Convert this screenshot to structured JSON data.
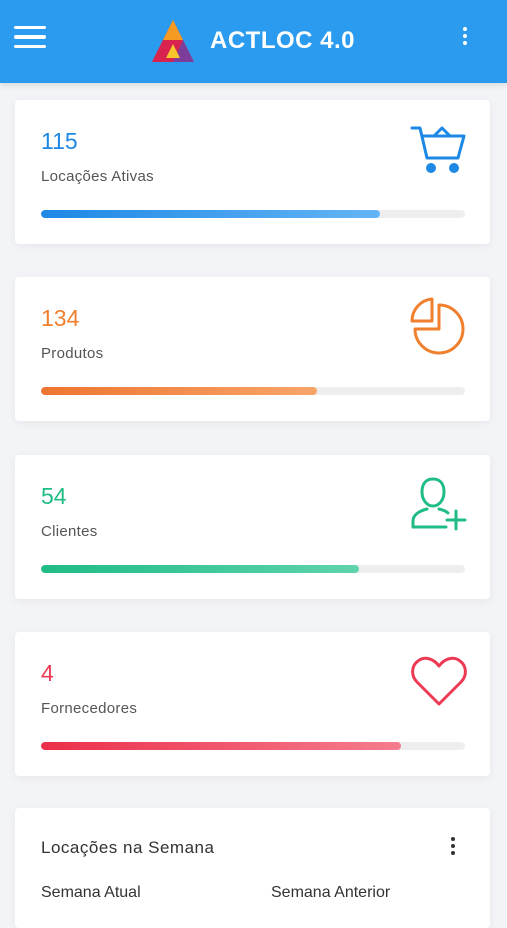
{
  "app": {
    "title": "ACTLOC 4.0",
    "accent": "#2b9bef"
  },
  "cards": [
    {
      "value": "115",
      "label": "Locações Ativas",
      "icon": "cart-icon",
      "color": "#1e88e5",
      "progress": 0.8
    },
    {
      "value": "134",
      "label": "Produtos",
      "icon": "pie-chart-icon",
      "color": "#f07f2e",
      "progress": 0.65
    },
    {
      "value": "54",
      "label": "Clientes",
      "icon": "add-user-icon",
      "color": "#1fbc84",
      "progress": 0.75
    },
    {
      "value": "4",
      "label": "Fornecedores",
      "icon": "heart-icon",
      "color": "#ec3a55",
      "progress": 0.85
    }
  ],
  "week": {
    "title": "Locações na Semana",
    "legend_current": "Semana Atual",
    "legend_previous": "Semana Anterior"
  }
}
